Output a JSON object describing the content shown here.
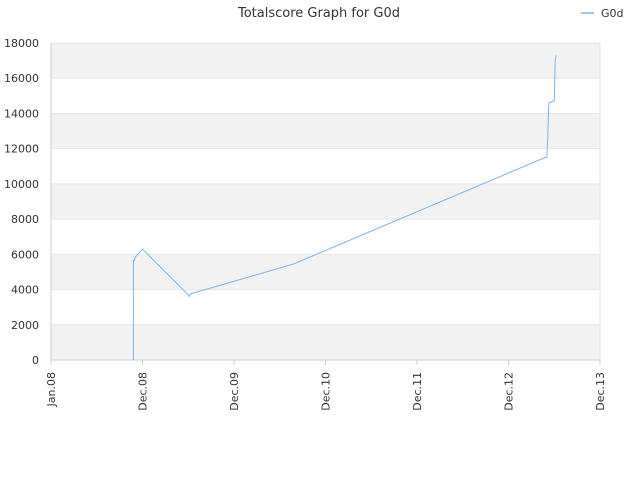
{
  "chart_data": {
    "type": "line",
    "title": "Totalscore Graph for G0d",
    "xlabel": "",
    "ylabel": "",
    "x_ticks": [
      "Jan.08",
      "Dec.08",
      "Dec.09",
      "Dec.10",
      "Dec.11",
      "Dec.12",
      "Dec.13"
    ],
    "y_ticks": [
      0,
      2000,
      4000,
      6000,
      8000,
      10000,
      12000,
      14000,
      16000,
      18000
    ],
    "ylim": [
      0,
      18000
    ],
    "xlim": [
      "Jan.08",
      "Dec.13"
    ],
    "grid": "horizontal bands",
    "legend_position": "top-right",
    "series": [
      {
        "name": "G0d",
        "color": "#7cb5ec",
        "points": [
          {
            "x": "Dec.08",
            "offset": -0.1,
            "y": 0
          },
          {
            "x": "Dec.08",
            "offset": -0.1,
            "y": 5650
          },
          {
            "x": "Dec.08",
            "offset": -0.09,
            "y": 5650
          },
          {
            "x": "Dec.08",
            "offset": -0.08,
            "y": 5850
          },
          {
            "x": "Dec.08",
            "offset": -0.07,
            "y": 5900
          },
          {
            "x": "Dec.08",
            "offset": 0.0,
            "y": 6300
          },
          {
            "x": "Dec.08",
            "offset": 0.5,
            "y": 3700
          },
          {
            "x": "Dec.08",
            "offset": 0.51,
            "y": 3600
          },
          {
            "x": "Dec.08",
            "offset": 0.52,
            "y": 3750
          },
          {
            "x": "Dec.09",
            "offset": 0.65,
            "y": 5450
          },
          {
            "x": "Dec.12",
            "offset": 0.4,
            "y": 11500
          },
          {
            "x": "Dec.12",
            "offset": 0.42,
            "y": 11500
          },
          {
            "x": "Dec.12",
            "offset": 0.43,
            "y": 12700
          },
          {
            "x": "Dec.12",
            "offset": 0.44,
            "y": 14600
          },
          {
            "x": "Dec.12",
            "offset": 0.49,
            "y": 14700
          },
          {
            "x": "Dec.12",
            "offset": 0.5,
            "y": 14700
          },
          {
            "x": "Dec.12",
            "offset": 0.51,
            "y": 17000
          },
          {
            "x": "Dec.12",
            "offset": 0.52,
            "y": 17300
          }
        ]
      }
    ]
  }
}
